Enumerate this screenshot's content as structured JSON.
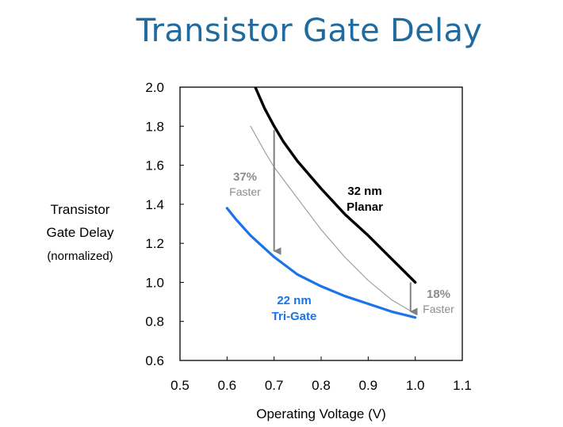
{
  "slide": {
    "title": "Transistor Gate Delay"
  },
  "chart_data": {
    "type": "line",
    "xlabel": "Operating Voltage (V)",
    "ylabel_lines": [
      "Transistor",
      "Gate Delay",
      "(normalized)"
    ],
    "xlim": [
      0.5,
      1.1
    ],
    "ylim": [
      0.6,
      2.0
    ],
    "xticks": [
      0.5,
      0.6,
      0.7,
      0.8,
      0.9,
      1.0,
      1.1
    ],
    "yticks": [
      0.6,
      0.8,
      1.0,
      1.2,
      1.4,
      1.6,
      1.8,
      2.0
    ],
    "xtick_labels": [
      "0.5",
      "0.6",
      "0.7",
      "0.8",
      "0.9",
      "1.0",
      "1.1"
    ],
    "ytick_labels": [
      "0.6",
      "0.8",
      "1.0",
      "1.2",
      "1.4",
      "1.6",
      "1.8",
      "2.0"
    ],
    "grid": false,
    "series": [
      {
        "name_lines": [
          "32 nm",
          "Planar"
        ],
        "color": "#000000",
        "x": [
          0.66,
          0.68,
          0.7,
          0.72,
          0.75,
          0.8,
          0.85,
          0.9,
          0.95,
          1.0
        ],
        "y": [
          2.0,
          1.89,
          1.8,
          1.72,
          1.62,
          1.48,
          1.35,
          1.24,
          1.12,
          1.0
        ]
      },
      {
        "name_lines": [
          "22 nm",
          "Tri-Gate"
        ],
        "color": "#1a73e8",
        "x": [
          0.6,
          0.62,
          0.65,
          0.7,
          0.75,
          0.8,
          0.85,
          0.9,
          0.95,
          1.0
        ],
        "y": [
          1.38,
          1.32,
          1.24,
          1.13,
          1.04,
          0.98,
          0.93,
          0.89,
          0.85,
          0.82
        ]
      },
      {
        "color": "#9a9a9a",
        "x": [
          0.65,
          0.68,
          0.7,
          0.75,
          0.8,
          0.85,
          0.9,
          0.95,
          1.0
        ],
        "y": [
          1.8,
          1.67,
          1.59,
          1.43,
          1.27,
          1.13,
          1.01,
          0.91,
          0.84
        ]
      }
    ],
    "annotations": [
      {
        "line1": "37%",
        "line2": "Faster",
        "color": "#8c8c8c",
        "arrow_x": 0.7,
        "arrow_from_y": 1.78,
        "arrow_to_y": 1.16
      },
      {
        "line1": "18%",
        "line2": "Faster",
        "color": "#8c8c8c",
        "arrow_x": 0.99,
        "arrow_from_y": 1.0,
        "arrow_to_y": 0.85
      }
    ]
  }
}
